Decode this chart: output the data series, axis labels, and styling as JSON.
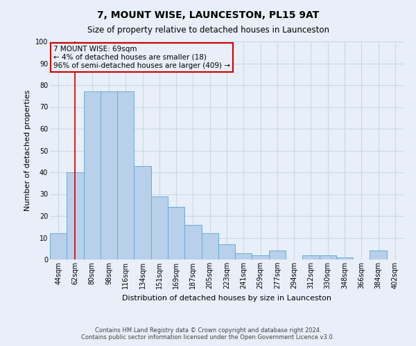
{
  "title": "7, MOUNT WISE, LAUNCESTON, PL15 9AT",
  "subtitle": "Size of property relative to detached houses in Launceston",
  "xlabel": "Distribution of detached houses by size in Launceston",
  "ylabel": "Number of detached properties",
  "bin_labels": [
    "44sqm",
    "62sqm",
    "80sqm",
    "98sqm",
    "116sqm",
    "134sqm",
    "151sqm",
    "169sqm",
    "187sqm",
    "205sqm",
    "223sqm",
    "241sqm",
    "259sqm",
    "277sqm",
    "294sqm",
    "312sqm",
    "330sqm",
    "348sqm",
    "366sqm",
    "384sqm",
    "402sqm"
  ],
  "bar_values": [
    12,
    40,
    77,
    77,
    77,
    43,
    29,
    24,
    16,
    12,
    7,
    3,
    2,
    4,
    0,
    2,
    2,
    1,
    0,
    4,
    0
  ],
  "bar_color": "#b8d0ea",
  "bar_edge_color": "#6aaad4",
  "vline_x_index": 1,
  "vline_color": "#cc0000",
  "ylim": [
    0,
    100
  ],
  "yticks": [
    0,
    10,
    20,
    30,
    40,
    50,
    60,
    70,
    80,
    90,
    100
  ],
  "annotation_title": "7 MOUNT WISE: 69sqm",
  "annotation_line1": "← 4% of detached houses are smaller (18)",
  "annotation_line2": "96% of semi-detached houses are larger (409) →",
  "annotation_box_color": "#cc0000",
  "footer_line1": "Contains HM Land Registry data © Crown copyright and database right 2024.",
  "footer_line2": "Contains public sector information licensed under the Open Government Licence v3.0.",
  "background_color": "#e8eff8",
  "grid_color": "#c8d8e8",
  "title_fontsize": 10,
  "subtitle_fontsize": 8.5,
  "axis_label_fontsize": 8,
  "tick_fontsize": 7,
  "annotation_fontsize": 7.5,
  "footer_fontsize": 6
}
